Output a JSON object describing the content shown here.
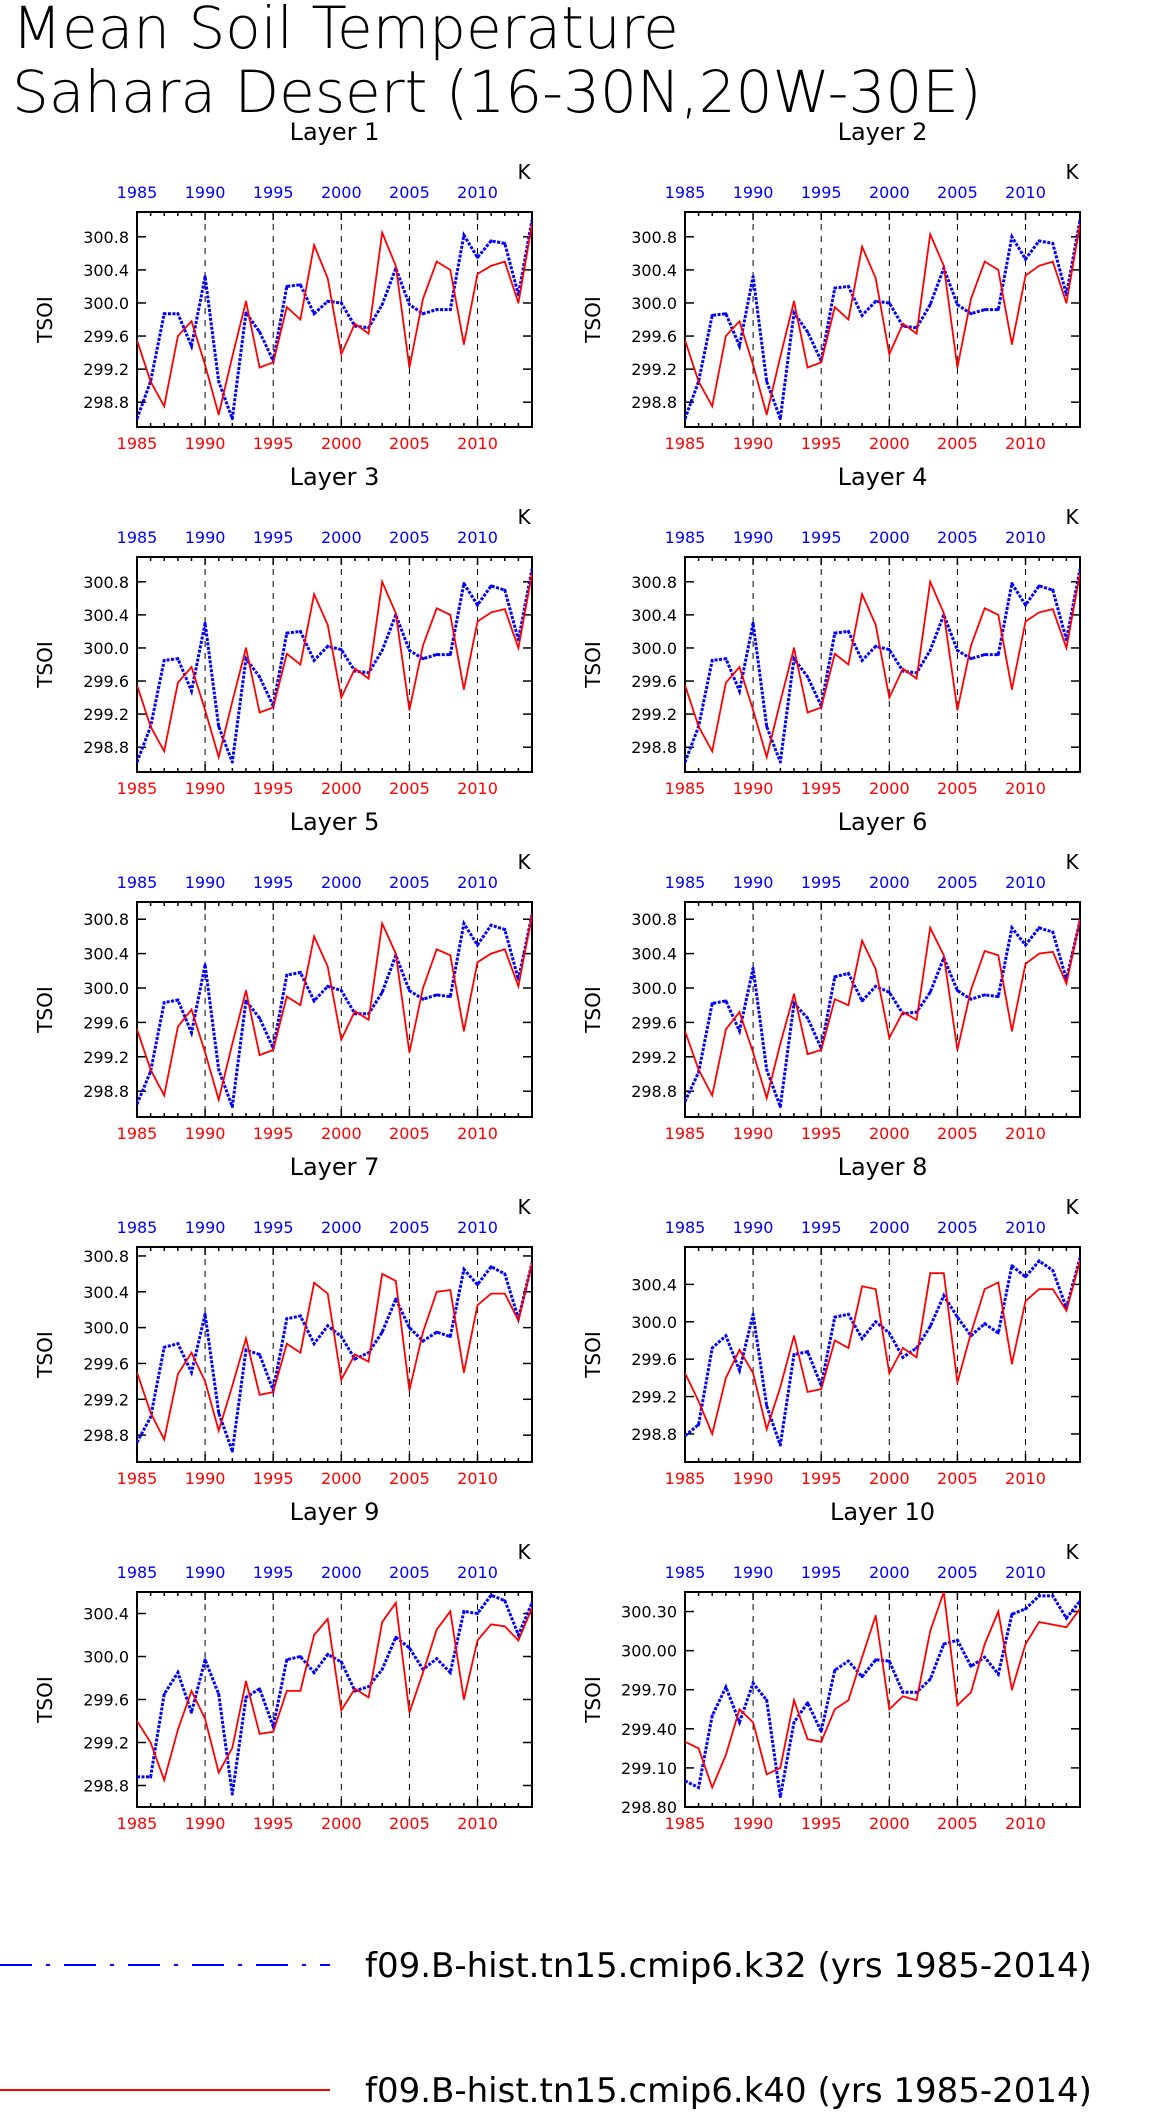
{
  "title_lines": [
    "Mean Soil Temperature",
    "Sahara Desert (16-30N,20W-30E)"
  ],
  "colors": {
    "k32": "#0000ff",
    "k40": "#ff0000",
    "axis": "#000000"
  },
  "legend": [
    {
      "label": "f09.B-hist.tn15.cmip6.k32 (yrs 1985-2014)",
      "color": "#0000ff",
      "style": "dashed-dotted"
    },
    {
      "label": "f09.B-hist.tn15.cmip6.k40 (yrs 1985-2014)",
      "color": "#ff0000",
      "style": "solid"
    }
  ],
  "chart_data": [
    {
      "type": "line",
      "title": "Layer 1",
      "ylabel": "TSOI",
      "unit": "K",
      "xlim": [
        1985,
        2014
      ],
      "ylim": [
        298.5,
        301.1
      ],
      "yticks": [
        "298.8",
        "299.2",
        "299.6",
        "300.0",
        "300.4",
        "300.8"
      ],
      "xticks": [
        1985,
        1990,
        1995,
        2000,
        2005,
        2010
      ],
      "series": [
        {
          "name": "f09.B-hist.tn15.cmip6.k32",
          "color": "#0000ff",
          "values": [
            298.6,
            299.05,
            299.87,
            299.87,
            299.48,
            300.32,
            299.05,
            298.6,
            299.88,
            299.65,
            299.3,
            300.2,
            300.22,
            299.87,
            300.02,
            300.0,
            299.72,
            299.7,
            299.98,
            300.42,
            299.98,
            299.87,
            299.92,
            299.92,
            300.82,
            300.55,
            300.75,
            300.72,
            300.1,
            301.0
          ]
        },
        {
          "name": "f09.B-hist.tn15.cmip6.k40",
          "color": "#ff0000",
          "values": [
            299.55,
            299.05,
            298.75,
            299.6,
            299.78,
            299.25,
            298.65,
            299.35,
            300.02,
            299.22,
            299.28,
            299.95,
            299.8,
            300.7,
            300.3,
            299.38,
            299.75,
            299.63,
            300.85,
            300.45,
            299.22,
            300.05,
            300.5,
            300.4,
            299.5,
            300.35,
            300.45,
            300.5,
            300.0,
            300.95
          ]
        }
      ]
    },
    {
      "type": "line",
      "title": "Layer 2",
      "ylabel": "TSOI",
      "unit": "K",
      "xlim": [
        1985,
        2014
      ],
      "ylim": [
        298.5,
        301.1
      ],
      "yticks": [
        "298.8",
        "299.2",
        "299.6",
        "300.0",
        "300.4",
        "300.8"
      ],
      "xticks": [
        1985,
        1990,
        1995,
        2000,
        2005,
        2010
      ],
      "series": [
        {
          "name": "f09.B-hist.tn15.cmip6.k32",
          "color": "#0000ff",
          "values": [
            298.6,
            299.05,
            299.85,
            299.87,
            299.48,
            300.32,
            299.05,
            298.6,
            299.88,
            299.65,
            299.3,
            300.18,
            300.2,
            299.85,
            300.02,
            300.0,
            299.72,
            299.7,
            299.98,
            300.42,
            299.98,
            299.87,
            299.92,
            299.92,
            300.8,
            300.53,
            300.75,
            300.72,
            300.1,
            301.0
          ]
        },
        {
          "name": "f09.B-hist.tn15.cmip6.k40",
          "color": "#ff0000",
          "values": [
            299.55,
            299.05,
            298.75,
            299.6,
            299.78,
            299.25,
            298.65,
            299.35,
            300.02,
            299.22,
            299.28,
            299.95,
            299.8,
            300.68,
            300.3,
            299.38,
            299.75,
            299.63,
            300.83,
            300.45,
            299.22,
            300.05,
            300.5,
            300.4,
            299.5,
            300.33,
            300.45,
            300.5,
            300.0,
            300.95
          ]
        }
      ]
    },
    {
      "type": "line",
      "title": "Layer 3",
      "ylabel": "TSOI",
      "unit": "K",
      "xlim": [
        1985,
        2014
      ],
      "ylim": [
        298.5,
        301.1
      ],
      "yticks": [
        "298.8",
        "299.2",
        "299.6",
        "300.0",
        "300.4",
        "300.8"
      ],
      "xticks": [
        1985,
        1990,
        1995,
        2000,
        2005,
        2010
      ],
      "series": [
        {
          "name": "f09.B-hist.tn15.cmip6.k32",
          "color": "#0000ff",
          "values": [
            298.62,
            299.05,
            299.85,
            299.87,
            299.48,
            300.3,
            299.05,
            298.62,
            299.87,
            299.65,
            299.3,
            300.18,
            300.2,
            299.85,
            300.02,
            299.98,
            299.72,
            299.7,
            299.97,
            300.4,
            299.97,
            299.87,
            299.92,
            299.92,
            300.78,
            300.52,
            300.75,
            300.7,
            300.1,
            300.95
          ]
        },
        {
          "name": "f09.B-hist.tn15.cmip6.k40",
          "color": "#ff0000",
          "values": [
            299.55,
            299.05,
            298.75,
            299.58,
            299.77,
            299.25,
            298.68,
            299.35,
            300.0,
            299.22,
            299.28,
            299.93,
            299.8,
            300.65,
            300.28,
            299.4,
            299.75,
            299.63,
            300.8,
            300.42,
            299.25,
            300.03,
            300.48,
            300.4,
            299.5,
            300.32,
            300.43,
            300.47,
            300.0,
            300.9
          ]
        }
      ]
    },
    {
      "type": "line",
      "title": "Layer 4",
      "ylabel": "TSOI",
      "unit": "K",
      "xlim": [
        1985,
        2014
      ],
      "ylim": [
        298.5,
        301.1
      ],
      "yticks": [
        "298.8",
        "299.2",
        "299.6",
        "300.0",
        "300.4",
        "300.8"
      ],
      "xticks": [
        1985,
        1990,
        1995,
        2000,
        2005,
        2010
      ],
      "series": [
        {
          "name": "f09.B-hist.tn15.cmip6.k32",
          "color": "#0000ff",
          "values": [
            298.62,
            299.05,
            299.85,
            299.87,
            299.48,
            300.3,
            299.05,
            298.62,
            299.87,
            299.65,
            299.3,
            300.18,
            300.2,
            299.85,
            300.02,
            299.98,
            299.72,
            299.7,
            299.97,
            300.4,
            299.97,
            299.87,
            299.92,
            299.92,
            300.78,
            300.52,
            300.75,
            300.7,
            300.1,
            300.95
          ]
        },
        {
          "name": "f09.B-hist.tn15.cmip6.k40",
          "color": "#ff0000",
          "values": [
            299.55,
            299.05,
            298.75,
            299.58,
            299.77,
            299.25,
            298.68,
            299.35,
            300.0,
            299.22,
            299.28,
            299.93,
            299.8,
            300.65,
            300.28,
            299.4,
            299.75,
            299.63,
            300.8,
            300.42,
            299.25,
            300.03,
            300.48,
            300.4,
            299.5,
            300.32,
            300.43,
            300.47,
            300.0,
            300.9
          ]
        }
      ]
    },
    {
      "type": "line",
      "title": "Layer 5",
      "ylabel": "TSOI",
      "unit": "K",
      "xlim": [
        1985,
        2014
      ],
      "ylim": [
        298.5,
        301.0
      ],
      "yticks": [
        "298.8",
        "299.2",
        "299.6",
        "300.0",
        "300.4",
        "300.8"
      ],
      "xticks": [
        1985,
        1990,
        1995,
        2000,
        2005,
        2010
      ],
      "series": [
        {
          "name": "f09.B-hist.tn15.cmip6.k32",
          "color": "#0000ff",
          "values": [
            298.65,
            299.03,
            299.83,
            299.86,
            299.48,
            300.27,
            299.05,
            298.62,
            299.85,
            299.65,
            299.3,
            300.15,
            300.18,
            299.85,
            300.02,
            299.97,
            299.7,
            299.7,
            299.95,
            300.38,
            299.97,
            299.87,
            299.92,
            299.9,
            300.75,
            300.5,
            300.73,
            300.68,
            300.1,
            300.85
          ]
        },
        {
          "name": "f09.B-hist.tn15.cmip6.k40",
          "color": "#ff0000",
          "values": [
            299.52,
            299.05,
            298.75,
            299.55,
            299.75,
            299.25,
            298.7,
            299.35,
            299.97,
            299.22,
            299.28,
            299.9,
            299.8,
            300.6,
            300.25,
            299.4,
            299.73,
            299.63,
            300.75,
            300.4,
            299.25,
            300.0,
            300.45,
            300.38,
            299.5,
            300.3,
            300.4,
            300.45,
            300.02,
            300.85
          ]
        }
      ]
    },
    {
      "type": "line",
      "title": "Layer 6",
      "ylabel": "TSOI",
      "unit": "K",
      "xlim": [
        1985,
        2014
      ],
      "ylim": [
        298.5,
        301.0
      ],
      "yticks": [
        "298.8",
        "299.2",
        "299.6",
        "300.0",
        "300.4",
        "300.8"
      ],
      "xticks": [
        1985,
        1990,
        1995,
        2000,
        2005,
        2010
      ],
      "series": [
        {
          "name": "f09.B-hist.tn15.cmip6.k32",
          "color": "#0000ff",
          "values": [
            298.68,
            299.02,
            299.82,
            299.85,
            299.5,
            300.23,
            299.05,
            298.62,
            299.82,
            299.65,
            299.3,
            300.13,
            300.17,
            299.85,
            300.02,
            299.95,
            299.7,
            299.72,
            299.95,
            300.35,
            299.97,
            299.87,
            299.92,
            299.9,
            300.7,
            300.5,
            300.7,
            300.65,
            300.1,
            300.78
          ]
        },
        {
          "name": "f09.B-hist.tn15.cmip6.k40",
          "color": "#ff0000",
          "values": [
            299.5,
            299.05,
            298.75,
            299.52,
            299.72,
            299.25,
            298.72,
            299.35,
            299.93,
            299.23,
            299.28,
            299.87,
            299.8,
            300.55,
            300.22,
            299.42,
            299.72,
            299.63,
            300.7,
            300.38,
            299.28,
            299.98,
            300.43,
            300.38,
            299.5,
            300.28,
            300.4,
            300.42,
            300.05,
            300.8
          ]
        }
      ]
    },
    {
      "type": "line",
      "title": "Layer 7",
      "ylabel": "TSOI",
      "unit": "K",
      "xlim": [
        1985,
        2014
      ],
      "ylim": [
        298.5,
        300.9
      ],
      "yticks": [
        "298.8",
        "299.2",
        "299.6",
        "300.0",
        "300.4",
        "300.8"
      ],
      "xticks": [
        1985,
        1990,
        1995,
        2000,
        2005,
        2010
      ],
      "series": [
        {
          "name": "f09.B-hist.tn15.cmip6.k32",
          "color": "#0000ff",
          "values": [
            298.72,
            299.0,
            299.78,
            299.82,
            299.5,
            300.15,
            299.05,
            298.62,
            299.75,
            299.7,
            299.3,
            300.1,
            300.13,
            299.82,
            300.02,
            299.9,
            299.65,
            299.72,
            299.95,
            300.32,
            300.0,
            299.85,
            299.95,
            299.9,
            300.65,
            300.48,
            300.68,
            300.6,
            300.1,
            300.72
          ]
        },
        {
          "name": "f09.B-hist.tn15.cmip6.k40",
          "color": "#ff0000",
          "values": [
            299.5,
            299.05,
            298.75,
            299.48,
            299.72,
            299.4,
            298.85,
            299.35,
            299.88,
            299.25,
            299.28,
            299.82,
            299.72,
            300.5,
            300.38,
            299.42,
            299.7,
            299.62,
            300.6,
            300.52,
            299.3,
            299.95,
            300.4,
            300.42,
            299.5,
            300.25,
            300.38,
            300.38,
            300.08,
            300.72
          ]
        }
      ]
    },
    {
      "type": "line",
      "title": "Layer 8",
      "ylabel": "TSOI",
      "unit": "K",
      "xlim": [
        1985,
        2014
      ],
      "ylim": [
        298.5,
        300.8
      ],
      "yticks": [
        "298.8",
        "299.2",
        "299.6",
        "300.0",
        "300.4"
      ],
      "xticks": [
        1985,
        1990,
        1995,
        2000,
        2005,
        2010
      ],
      "series": [
        {
          "name": "f09.B-hist.tn15.cmip6.k32",
          "color": "#0000ff",
          "values": [
            298.78,
            298.9,
            299.72,
            299.85,
            299.48,
            300.08,
            299.1,
            298.68,
            299.65,
            299.68,
            299.32,
            300.05,
            300.08,
            299.82,
            300.0,
            299.88,
            299.62,
            299.72,
            299.95,
            300.28,
            300.05,
            299.85,
            299.98,
            299.88,
            300.6,
            300.48,
            300.65,
            300.55,
            300.15,
            300.68
          ]
        },
        {
          "name": "f09.B-hist.tn15.cmip6.k40",
          "color": "#ff0000",
          "values": [
            299.45,
            299.15,
            298.8,
            299.4,
            299.7,
            299.45,
            298.85,
            299.3,
            299.85,
            299.25,
            299.28,
            299.8,
            299.72,
            300.38,
            300.35,
            299.45,
            299.72,
            299.62,
            300.52,
            300.52,
            299.35,
            299.88,
            300.35,
            300.42,
            299.55,
            300.22,
            300.35,
            300.35,
            300.12,
            300.65
          ]
        }
      ]
    },
    {
      "type": "line",
      "title": "Layer 9",
      "ylabel": "TSOI",
      "unit": "K",
      "xlim": [
        1985,
        2014
      ],
      "ylim": [
        298.6,
        300.6
      ],
      "yticks": [
        "298.8",
        "299.2",
        "299.6",
        "300.0",
        "300.4"
      ],
      "xticks": [
        1985,
        1990,
        1995,
        2000,
        2005,
        2010
      ],
      "series": [
        {
          "name": "f09.B-hist.tn15.cmip6.k32",
          "color": "#0000ff",
          "values": [
            298.88,
            298.88,
            299.65,
            299.85,
            299.48,
            299.97,
            299.65,
            298.72,
            299.62,
            299.7,
            299.35,
            299.97,
            300.0,
            299.85,
            300.02,
            299.95,
            299.68,
            299.72,
            299.88,
            300.18,
            300.08,
            299.88,
            299.98,
            299.85,
            300.42,
            300.4,
            300.57,
            300.52,
            300.2,
            300.5
          ]
        },
        {
          "name": "f09.B-hist.tn15.cmip6.k40",
          "color": "#ff0000",
          "values": [
            299.4,
            299.2,
            298.85,
            299.32,
            299.68,
            299.42,
            298.92,
            299.15,
            299.77,
            299.28,
            299.3,
            299.68,
            299.68,
            300.2,
            300.35,
            299.5,
            299.7,
            299.62,
            300.32,
            300.5,
            299.48,
            299.85,
            300.25,
            300.42,
            299.6,
            300.15,
            300.3,
            300.28,
            300.15,
            300.45
          ]
        }
      ]
    },
    {
      "type": "line",
      "title": "Layer 10",
      "ylabel": "TSOI",
      "unit": "K",
      "xlim": [
        1985,
        2014
      ],
      "ylim": [
        298.8,
        300.45
      ],
      "yticks": [
        "298.80",
        "299.10",
        "299.40",
        "299.70",
        "300.00",
        "300.30"
      ],
      "xticks": [
        1985,
        1990,
        1995,
        2000,
        2005,
        2010
      ],
      "series": [
        {
          "name": "f09.B-hist.tn15.cmip6.k32",
          "color": "#0000ff",
          "values": [
            299.0,
            298.95,
            299.5,
            299.72,
            299.45,
            299.75,
            299.62,
            298.88,
            299.45,
            299.6,
            299.38,
            299.85,
            299.92,
            299.8,
            299.93,
            299.92,
            299.68,
            299.68,
            299.78,
            300.05,
            300.08,
            299.88,
            299.95,
            299.82,
            300.28,
            300.32,
            300.42,
            300.42,
            300.25,
            300.38
          ]
        },
        {
          "name": "f09.B-hist.tn15.cmip6.k40",
          "color": "#ff0000",
          "values": [
            299.3,
            299.25,
            298.95,
            299.2,
            299.55,
            299.45,
            299.05,
            299.1,
            299.62,
            299.32,
            299.3,
            299.55,
            299.62,
            299.95,
            300.27,
            299.55,
            299.65,
            299.62,
            300.15,
            300.45,
            299.58,
            299.68,
            300.05,
            300.3,
            299.7,
            300.05,
            300.22,
            300.2,
            300.18,
            300.32
          ]
        }
      ]
    }
  ]
}
